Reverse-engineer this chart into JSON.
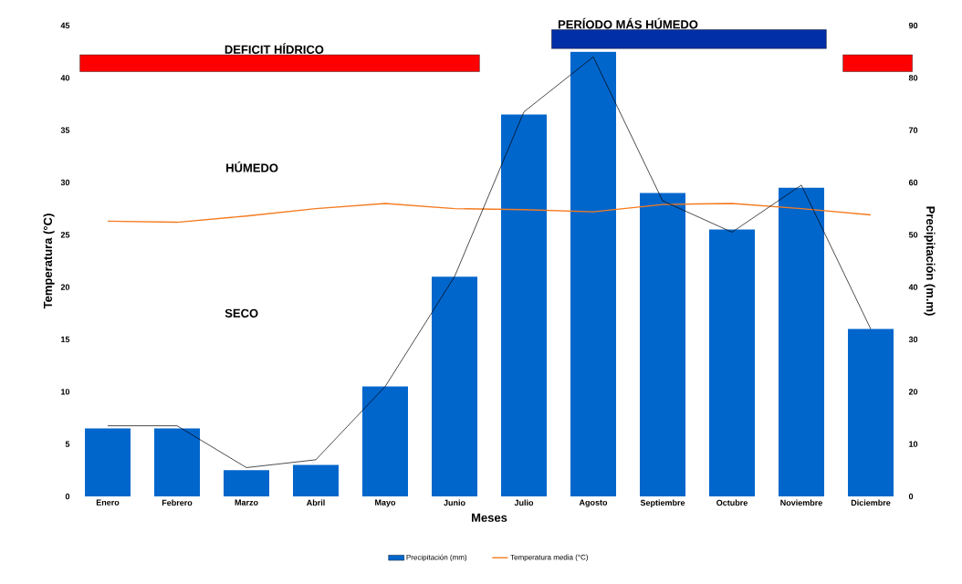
{
  "chart_data": {
    "type": "bar",
    "xlabel": "Meses",
    "ylabel": "Temperatura (°C)",
    "y2label": "Precipitación (m.m)",
    "categories": [
      "Enero",
      "Febrero",
      "Marzo",
      "Abril",
      "Mayo",
      "Junio",
      "Julio",
      "Agosto",
      "Septiembre",
      "Octubre",
      "Noviembre",
      "Diciembre"
    ],
    "series": [
      {
        "name": "Precipitación (mm)",
        "axis": "y2",
        "color": "#0066cc",
        "values": [
          13,
          13,
          5,
          6,
          21,
          42,
          73,
          85,
          58,
          51,
          59,
          32
        ]
      },
      {
        "type": "line",
        "axis": "y2",
        "color": "#000000",
        "values": [
          13.5,
          13.5,
          5.5,
          7,
          21,
          42,
          73.5,
          84,
          56.5,
          50.5,
          59.5,
          32
        ]
      },
      {
        "name": "Temperatura media (°C)",
        "type": "line",
        "color": "#f47b20",
        "values": [
          26.3,
          26.2,
          26.8,
          27.5,
          28,
          27.5,
          27.4,
          27.2,
          27.9,
          28,
          27.5,
          26.9
        ]
      }
    ],
    "ylim": [
      0,
      45
    ],
    "yticks": [
      0,
      5,
      10,
      15,
      20,
      25,
      30,
      35,
      40,
      45
    ],
    "y2lim": [
      0,
      90
    ],
    "y2ticks": [
      0,
      10,
      20,
      30,
      40,
      50,
      60,
      70,
      80,
      90
    ],
    "annotations": [
      "DEFICIT HÍDRICO",
      "PERÍODO MÁS HÚMEDO",
      "HÚMEDO",
      "SECO"
    ],
    "legend": "bottom",
    "marker": "none",
    "grid": false
  }
}
